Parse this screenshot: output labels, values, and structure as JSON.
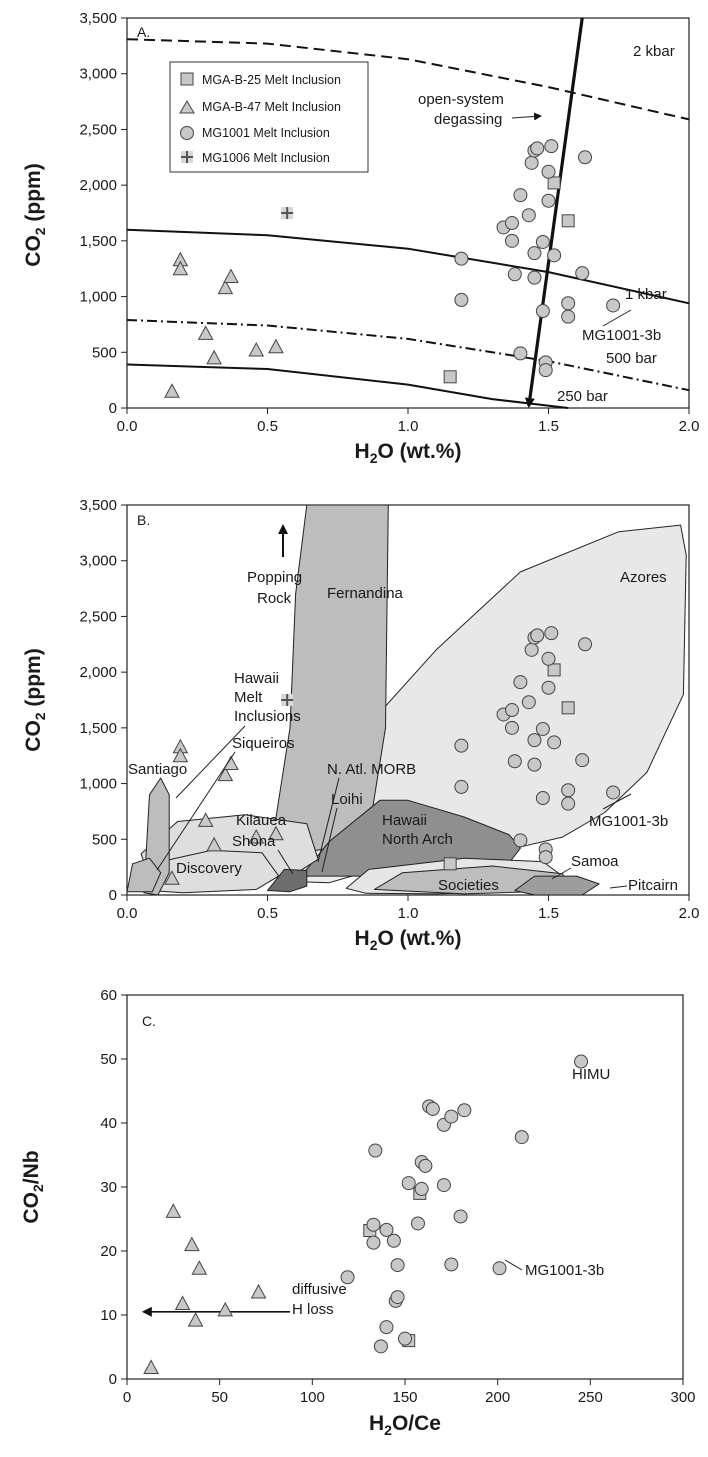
{
  "chart_data": [
    {
      "type": "scatter",
      "panel": "A.",
      "xlabel": "H2O (wt.%)",
      "ylabel": "CO2 (ppm)",
      "xlim": [
        0,
        2.0
      ],
      "ylim": [
        0,
        3500
      ],
      "x_ticks": [
        "0.0",
        "0.5",
        "1.0",
        "1.5",
        "2.0"
      ],
      "y_ticks": [
        "0",
        "500",
        "1,000",
        "1,500",
        "2,000",
        "2,500",
        "3,000",
        "3,500"
      ],
      "legend_position": "top-left",
      "series": [
        {
          "name": "MGA-B-25 Melt Inclusion",
          "marker": "square",
          "points": [
            [
              1.15,
              280
            ],
            [
              1.52,
              2020
            ],
            [
              1.57,
              1680
            ]
          ]
        },
        {
          "name": "MGA-B-47 Melt Inclusion",
          "marker": "triangle",
          "points": [
            [
              0.16,
              150
            ],
            [
              0.19,
              1330
            ],
            [
              0.19,
              1250
            ],
            [
              0.28,
              670
            ],
            [
              0.31,
              450
            ],
            [
              0.35,
              1080
            ],
            [
              0.37,
              1180
            ],
            [
              0.46,
              520
            ],
            [
              0.53,
              550
            ]
          ]
        },
        {
          "name": "MG1001 Melt Inclusion",
          "marker": "circle",
          "points": [
            [
              1.19,
              970
            ],
            [
              1.19,
              1340
            ],
            [
              1.34,
              1620
            ],
            [
              1.37,
              1660
            ],
            [
              1.37,
              1500
            ],
            [
              1.38,
              1200
            ],
            [
              1.4,
              1910
            ],
            [
              1.4,
              490
            ],
            [
              1.43,
              1730
            ],
            [
              1.44,
              2200
            ],
            [
              1.45,
              2310
            ],
            [
              1.45,
              1390
            ],
            [
              1.45,
              1170
            ],
            [
              1.46,
              2330
            ],
            [
              1.48,
              1490
            ],
            [
              1.48,
              870
            ],
            [
              1.49,
              410
            ],
            [
              1.49,
              340
            ],
            [
              1.5,
              1860
            ],
            [
              1.5,
              2120
            ],
            [
              1.51,
              2350
            ],
            [
              1.52,
              1370
            ],
            [
              1.57,
              820
            ],
            [
              1.57,
              940
            ],
            [
              1.62,
              1210
            ],
            [
              1.63,
              2250
            ],
            [
              1.73,
              920
            ]
          ]
        },
        {
          "name": "MG1006 Melt Inclusion",
          "marker": "plus",
          "points": [
            [
              0.57,
              1750
            ]
          ]
        }
      ],
      "isobars": [
        {
          "label": "2 kbar",
          "style": "dashed",
          "points": [
            [
              0,
              3310
            ],
            [
              0.5,
              3270
            ],
            [
              1.0,
              3130
            ],
            [
              1.5,
              2880
            ],
            [
              2.0,
              2590
            ]
          ]
        },
        {
          "label": "1 kbar",
          "style": "solid",
          "points": [
            [
              0,
              1600
            ],
            [
              0.5,
              1550
            ],
            [
              1.0,
              1430
            ],
            [
              1.5,
              1220
            ],
            [
              2.0,
              940
            ]
          ]
        },
        {
          "label": "500 bar",
          "style": "dash-dot",
          "points": [
            [
              0,
              790
            ],
            [
              0.5,
              740
            ],
            [
              1.0,
              620
            ],
            [
              1.5,
              420
            ],
            [
              2.0,
              160
            ]
          ]
        },
        {
          "label": "250 bar",
          "style": "solid",
          "points": [
            [
              0,
              390
            ],
            [
              0.5,
              350
            ],
            [
              1.0,
              210
            ],
            [
              1.3,
              80
            ],
            [
              1.57,
              0
            ]
          ]
        }
      ],
      "degassing_arrow": {
        "label": "open-system degassing",
        "from": [
          1.62,
          3500
        ],
        "to": [
          1.43,
          0
        ]
      },
      "callout": {
        "label": "MG1001-3b",
        "target": [
          1.73,
          920
        ]
      }
    },
    {
      "type": "scatter",
      "panel": "B.",
      "xlabel": "H2O (wt.%)",
      "ylabel": "CO2 (ppm)",
      "xlim": [
        0,
        2.0
      ],
      "ylim": [
        0,
        3500
      ],
      "x_ticks": [
        "0.0",
        "0.5",
        "1.0",
        "1.5",
        "2.0"
      ],
      "y_ticks": [
        "0",
        "500",
        "1,000",
        "1,500",
        "2,000",
        "2,500",
        "3,000",
        "3,500"
      ],
      "series_note": "same melt inclusion data as panel A",
      "fields": [
        {
          "label": "Azores",
          "shade": "#e8e8e8",
          "polygon": [
            [
              0.53,
              430
            ],
            [
              0.65,
              1100
            ],
            [
              0.85,
              1500
            ],
            [
              1.1,
              2200
            ],
            [
              1.4,
              2900
            ],
            [
              1.75,
              3260
            ],
            [
              1.97,
              3320
            ],
            [
              1.99,
              3050
            ],
            [
              1.98,
              1800
            ],
            [
              1.85,
              1100
            ],
            [
              1.7,
              740
            ],
            [
              1.55,
              520
            ],
            [
              1.38,
              420
            ],
            [
              1.1,
              400
            ],
            [
              0.85,
              410
            ]
          ]
        },
        {
          "label": "Fernandina",
          "shade": "#bdbdbd",
          "polygon": [
            [
              0.51,
              370
            ],
            [
              0.58,
              1500
            ],
            [
              0.6,
              2700
            ],
            [
              0.64,
              3500
            ],
            [
              0.93,
              3500
            ],
            [
              0.92,
              1500
            ],
            [
              0.86,
              560
            ],
            [
              0.74,
              380
            ],
            [
              0.62,
              330
            ]
          ]
        },
        {
          "label": "N. Atl. MORB",
          "shade": "#ececec",
          "polygon": [
            [
              0.55,
              160
            ],
            [
              0.62,
              380
            ],
            [
              0.72,
              420
            ],
            [
              0.76,
              280
            ],
            [
              0.7,
              150
            ]
          ]
        },
        {
          "label": "Loihi",
          "shade": "#ececec",
          "polygon": [
            [
              0.6,
              120
            ],
            [
              0.63,
              220
            ],
            [
              0.74,
              230
            ],
            [
              0.8,
              170
            ],
            [
              0.72,
              110
            ]
          ]
        },
        {
          "label": "Hawaii North Arch",
          "shade": "#8f8f8f",
          "polygon": [
            [
              0.62,
              170
            ],
            [
              0.72,
              480
            ],
            [
              0.9,
              850
            ],
            [
              1.0,
              850
            ],
            [
              1.2,
              700
            ],
            [
              1.36,
              540
            ],
            [
              1.4,
              420
            ],
            [
              1.36,
              290
            ],
            [
              1.15,
              200
            ],
            [
              0.92,
              170
            ]
          ]
        },
        {
          "label": "Kilauea",
          "shade": "#dedede",
          "polygon": [
            [
              0.05,
              370
            ],
            [
              0.18,
              660
            ],
            [
              0.42,
              720
            ],
            [
              0.64,
              640
            ],
            [
              0.68,
              320
            ],
            [
              0.58,
              160
            ],
            [
              0.3,
              140
            ],
            [
              0.08,
              150
            ]
          ]
        },
        {
          "label": "Discovery",
          "shade": "#dedede",
          "polygon": [
            [
              0.08,
              40
            ],
            [
              0.12,
              300
            ],
            [
              0.3,
              400
            ],
            [
              0.48,
              380
            ],
            [
              0.54,
              170
            ],
            [
              0.46,
              50
            ],
            [
              0.2,
              20
            ]
          ]
        },
        {
          "label": "Shona",
          "shade": "#6e6e6e",
          "polygon": [
            [
              0.5,
              40
            ],
            [
              0.56,
              230
            ],
            [
              0.64,
              220
            ],
            [
              0.64,
              80
            ],
            [
              0.58,
              30
            ]
          ]
        },
        {
          "label": "Santiago",
          "shade": "#bdbdbd",
          "polygon": [
            [
              0.06,
              20
            ],
            [
              0.08,
              900
            ],
            [
              0.12,
              1050
            ],
            [
              0.15,
              900
            ],
            [
              0.15,
              200
            ],
            [
              0.11,
              0
            ]
          ]
        },
        {
          "label": "Siqueiros",
          "shade": "#bdbdbd",
          "polygon": [
            [
              0.0,
              30
            ],
            [
              0.02,
              280
            ],
            [
              0.08,
              330
            ],
            [
              0.12,
              200
            ],
            [
              0.09,
              30
            ]
          ]
        },
        {
          "label": "Societies",
          "shade": "#e6e6e6",
          "polygon": [
            [
              0.78,
              60
            ],
            [
              0.86,
              230
            ],
            [
              1.2,
              330
            ],
            [
              1.48,
              300
            ],
            [
              1.55,
              170
            ],
            [
              1.5,
              40
            ],
            [
              1.1,
              10
            ],
            [
              0.85,
              15
            ]
          ]
        },
        {
          "label": "Samoa",
          "shade": "#bdbdbd",
          "polygon": [
            [
              0.88,
              50
            ],
            [
              0.98,
              200
            ],
            [
              1.3,
              260
            ],
            [
              1.55,
              190
            ],
            [
              1.58,
              40
            ],
            [
              1.2,
              10
            ]
          ]
        },
        {
          "label": "Pitcairn",
          "shade": "#9d9d9d",
          "polygon": [
            [
              1.38,
              40
            ],
            [
              1.45,
              170
            ],
            [
              1.6,
              170
            ],
            [
              1.68,
              100
            ],
            [
              1.62,
              0
            ],
            [
              1.45,
              0
            ]
          ]
        }
      ],
      "annotations": [
        "Popping Rock",
        "Hawaii Melt Inclusions",
        "MG1001-3b"
      ]
    },
    {
      "type": "scatter",
      "panel": "C.",
      "xlabel": "H2O/Ce",
      "ylabel": "CO2/Nb",
      "xlim": [
        0,
        300
      ],
      "ylim": [
        0,
        60
      ],
      "x_ticks": [
        "0",
        "50",
        "100",
        "150",
        "200",
        "250",
        "300"
      ],
      "y_ticks": [
        "0",
        "10",
        "20",
        "30",
        "40",
        "50",
        "60"
      ],
      "series": [
        {
          "name": "MGA-B-25 Melt Inclusion",
          "marker": "square",
          "points": [
            [
              131,
              23.2
            ],
            [
              152,
              6.0
            ],
            [
              158,
              29.0
            ]
          ]
        },
        {
          "name": "MGA-B-47 Melt Inclusion",
          "marker": "triangle",
          "points": [
            [
              13,
              1.8
            ],
            [
              25,
              26.2
            ],
            [
              30,
              11.8
            ],
            [
              35,
              21.0
            ],
            [
              37,
              9.2
            ],
            [
              39,
              17.3
            ],
            [
              53,
              10.8
            ],
            [
              71,
              13.6
            ]
          ]
        },
        {
          "name": "MG1001 Melt Inclusion",
          "marker": "circle",
          "points": [
            [
              119,
              15.9
            ],
            [
              133,
              21.3
            ],
            [
              133,
              24.1
            ],
            [
              134,
              35.7
            ],
            [
              137,
              5.1
            ],
            [
              140,
              23.3
            ],
            [
              140,
              8.1
            ],
            [
              144,
              21.6
            ],
            [
              145,
              12.2
            ],
            [
              146,
              12.8
            ],
            [
              146,
              17.8
            ],
            [
              150,
              6.3
            ],
            [
              152,
              30.6
            ],
            [
              157,
              24.3
            ],
            [
              159,
              33.9
            ],
            [
              159,
              29.7
            ],
            [
              161,
              33.3
            ],
            [
              163,
              42.6
            ],
            [
              165,
              42.2
            ],
            [
              171,
              30.3
            ],
            [
              171,
              39.7
            ],
            [
              175,
              41.0
            ],
            [
              175,
              17.9
            ],
            [
              180,
              25.4
            ],
            [
              182,
              42.0
            ],
            [
              201,
              17.3
            ],
            [
              213,
              37.8
            ],
            [
              245,
              49.6
            ]
          ]
        }
      ],
      "arrow": {
        "label": "diffusive H loss",
        "from": [
          88,
          10.5
        ],
        "to": [
          8,
          10.5
        ]
      },
      "annotations": [
        "HIMU",
        "MG1001-3b"
      ]
    }
  ],
  "labels": {
    "A": {
      "panel": "A.",
      "ylab_main": "CO",
      "ylab_sub": "2",
      "ylab_tail": " (ppm)",
      "xlab_main": "H",
      "xlab_sub": "2",
      "xlab_tail": "O (wt.%)",
      "iso_2kbar": "2 kbar",
      "iso_1kbar": "1 kbar",
      "iso_500bar": "500 bar",
      "iso_250bar": "250 bar",
      "degas_1": "open-system",
      "degas_2": "degassing",
      "callout": "MG1001-3b"
    },
    "B": {
      "panel": "B.",
      "ylab_main": "CO",
      "ylab_sub": "2",
      "ylab_tail": " (ppm)",
      "xlab_main": "H",
      "xlab_sub": "2",
      "xlab_tail": "O (wt.%)",
      "popping_1": "Popping",
      "popping_2": "Rock",
      "hawaii_mi_1": "Hawaii",
      "hawaii_mi_2": "Melt",
      "hawaii_mi_3": "Inclusions",
      "siqueiros": "Siqueiros",
      "santiago": "Santiago",
      "fernandina": "Fernandina",
      "azores": "Azores",
      "natl_morb": "N. Atl. MORB",
      "loihi": "Loihi",
      "kilauea": "Kilauea",
      "shona": "Shona",
      "discovery": "Discovery",
      "hna_1": "Hawaii",
      "hna_2": "North Arch",
      "samoa": "Samoa",
      "societies": "Societies",
      "pitcairn": "Pitcairn",
      "callout": "MG1001-3b"
    },
    "C": {
      "panel": "C.",
      "ylab_a": "CO",
      "ylab_sub": "2",
      "ylab_b": "/Nb",
      "xlab_a": "H",
      "xlab_sub": "2",
      "xlab_b": "O/Ce",
      "himu": "HIMU",
      "callout": "MG1001-3b",
      "diff_1": "diffusive",
      "diff_2": "H loss"
    }
  }
}
